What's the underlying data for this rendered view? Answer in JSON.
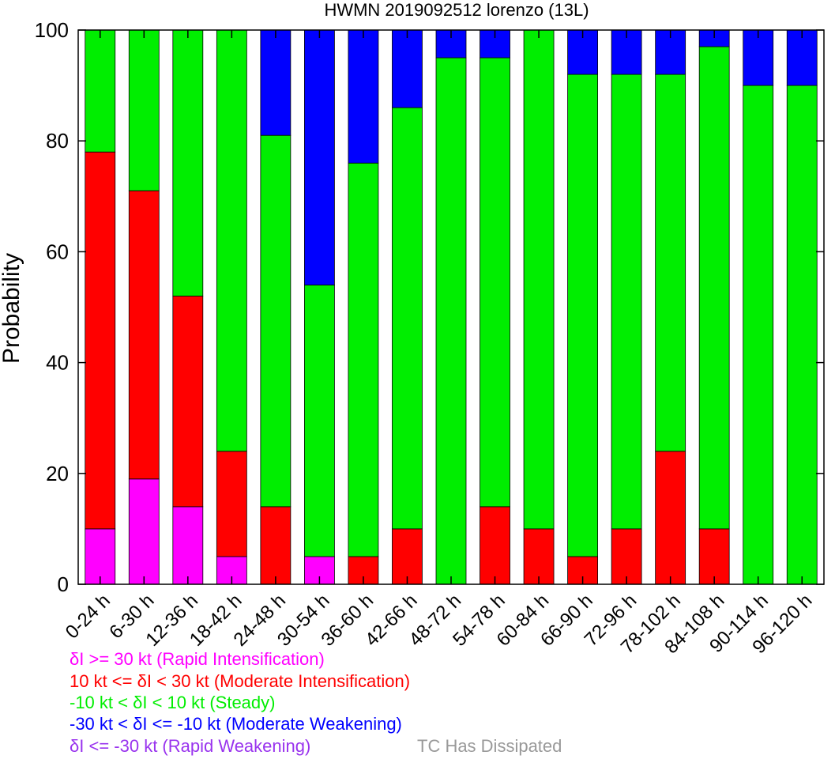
{
  "chart_data": {
    "type": "bar",
    "stacked": true,
    "title": "HWMN 2019092512 lorenzo (13L)",
    "xlabel": "",
    "ylabel": "Probability",
    "ylim": [
      0,
      100
    ],
    "yticks": [
      "0",
      "20",
      "40",
      "60",
      "80",
      "100"
    ],
    "grid": false,
    "categories": [
      "0-24 h",
      "6-30 h",
      "12-36 h",
      "18-42 h",
      "24-48 h",
      "30-54 h",
      "36-60 h",
      "42-66 h",
      "48-72 h",
      "54-78 h",
      "60-84 h",
      "66-90 h",
      "72-96 h",
      "78-102 h",
      "84-108 h",
      "90-114 h",
      "96-120 h"
    ],
    "series": [
      {
        "key": "ri",
        "color": "#ff00ff",
        "values": [
          10,
          19,
          14,
          5,
          0,
          5,
          0,
          0,
          0,
          0,
          0,
          0,
          0,
          0,
          0,
          0,
          0
        ]
      },
      {
        "key": "mi",
        "color": "#ff0000",
        "values": [
          68,
          52,
          38,
          19,
          14,
          0,
          5,
          10,
          0,
          14,
          10,
          5,
          10,
          24,
          10,
          0,
          0
        ]
      },
      {
        "key": "st",
        "color": "#00ee00",
        "values": [
          22,
          29,
          48,
          76,
          67,
          49,
          71,
          76,
          95,
          81,
          90,
          87,
          82,
          68,
          87,
          90,
          90
        ]
      },
      {
        "key": "mw",
        "color": "#0000ff",
        "values": [
          0,
          0,
          0,
          0,
          19,
          46,
          24,
          14,
          5,
          5,
          0,
          8,
          8,
          8,
          3,
          10,
          10
        ]
      },
      {
        "key": "rw",
        "color": "#9933ee",
        "values": [
          0,
          0,
          0,
          0,
          0,
          0,
          0,
          0,
          0,
          0,
          0,
          0,
          0,
          0,
          0,
          0,
          0
        ]
      }
    ]
  },
  "legend": {
    "items": [
      {
        "text": "δI >= 30 kt (Rapid Intensification)",
        "color": "#ff00ff"
      },
      {
        "text": "10 kt <= δI < 30 kt (Moderate Intensification)",
        "color": "#ff0000"
      },
      {
        "text": "-10 kt < δI < 10 kt (Steady)",
        "color": "#00ee00"
      },
      {
        "text": "-30 kt < δI <= -10 kt (Moderate Weakening)",
        "color": "#0000ff"
      },
      {
        "text": "δI <= -30 kt (Rapid Weakening)",
        "color": "#9933ee"
      }
    ],
    "dissipated": {
      "text": "TC Has Dissipated",
      "color": "#999999"
    }
  }
}
